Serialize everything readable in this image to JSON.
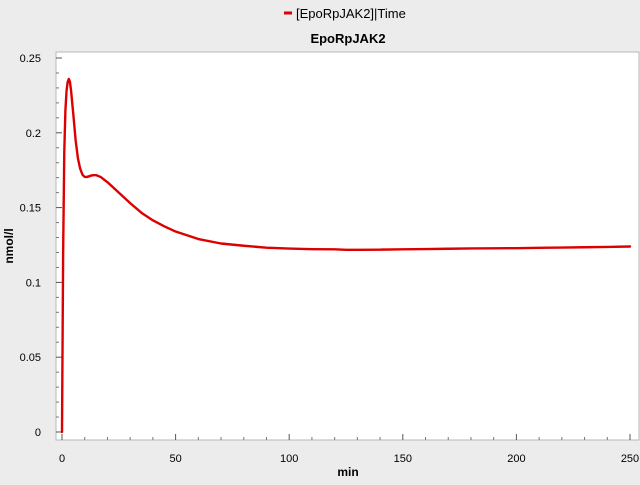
{
  "chart_data": {
    "type": "line",
    "title": "EpoRpJAK2",
    "xlabel": "min",
    "ylabel": "nmol/l",
    "xlim": [
      0,
      250
    ],
    "ylim": [
      0,
      0.25
    ],
    "xticks": [
      0,
      50,
      100,
      150,
      200,
      250
    ],
    "yticks": [
      0,
      0.05,
      0.1,
      0.15,
      0.2,
      0.25
    ],
    "xtick_labels": [
      "0",
      "50",
      "100",
      "150",
      "200",
      "250"
    ],
    "ytick_labels": [
      "0",
      "0.05",
      "0.1",
      "0.15",
      "0.2",
      "0.25"
    ],
    "grid": false,
    "legend_position": "top-center",
    "series": [
      {
        "name": "[EpoRpJAK2]|Time",
        "color": "#dd0000",
        "x": [
          0,
          0.5,
          1,
          1.5,
          2,
          2.5,
          3,
          3.5,
          4,
          5,
          6,
          7,
          8,
          9,
          10,
          11,
          12,
          13,
          14,
          15,
          17,
          20,
          25,
          30,
          35,
          40,
          45,
          50,
          60,
          70,
          80,
          90,
          100,
          110,
          120,
          125,
          130,
          140,
          150,
          160,
          170,
          180,
          190,
          200,
          210,
          220,
          230,
          240,
          250
        ],
        "values": [
          0,
          0.12,
          0.187,
          0.215,
          0.228,
          0.234,
          0.236,
          0.234,
          0.228,
          0.212,
          0.195,
          0.183,
          0.176,
          0.172,
          0.1705,
          0.1705,
          0.171,
          0.1715,
          0.1717,
          0.1717,
          0.1705,
          0.167,
          0.16,
          0.153,
          0.1465,
          0.1415,
          0.1375,
          0.134,
          0.129,
          0.126,
          0.1245,
          0.1232,
          0.1226,
          0.1222,
          0.1221,
          0.1218,
          0.1218,
          0.1219,
          0.1221,
          0.1223,
          0.1225,
          0.1227,
          0.1228,
          0.1229,
          0.1231,
          0.1233,
          0.1235,
          0.1237,
          0.124
        ]
      }
    ]
  }
}
